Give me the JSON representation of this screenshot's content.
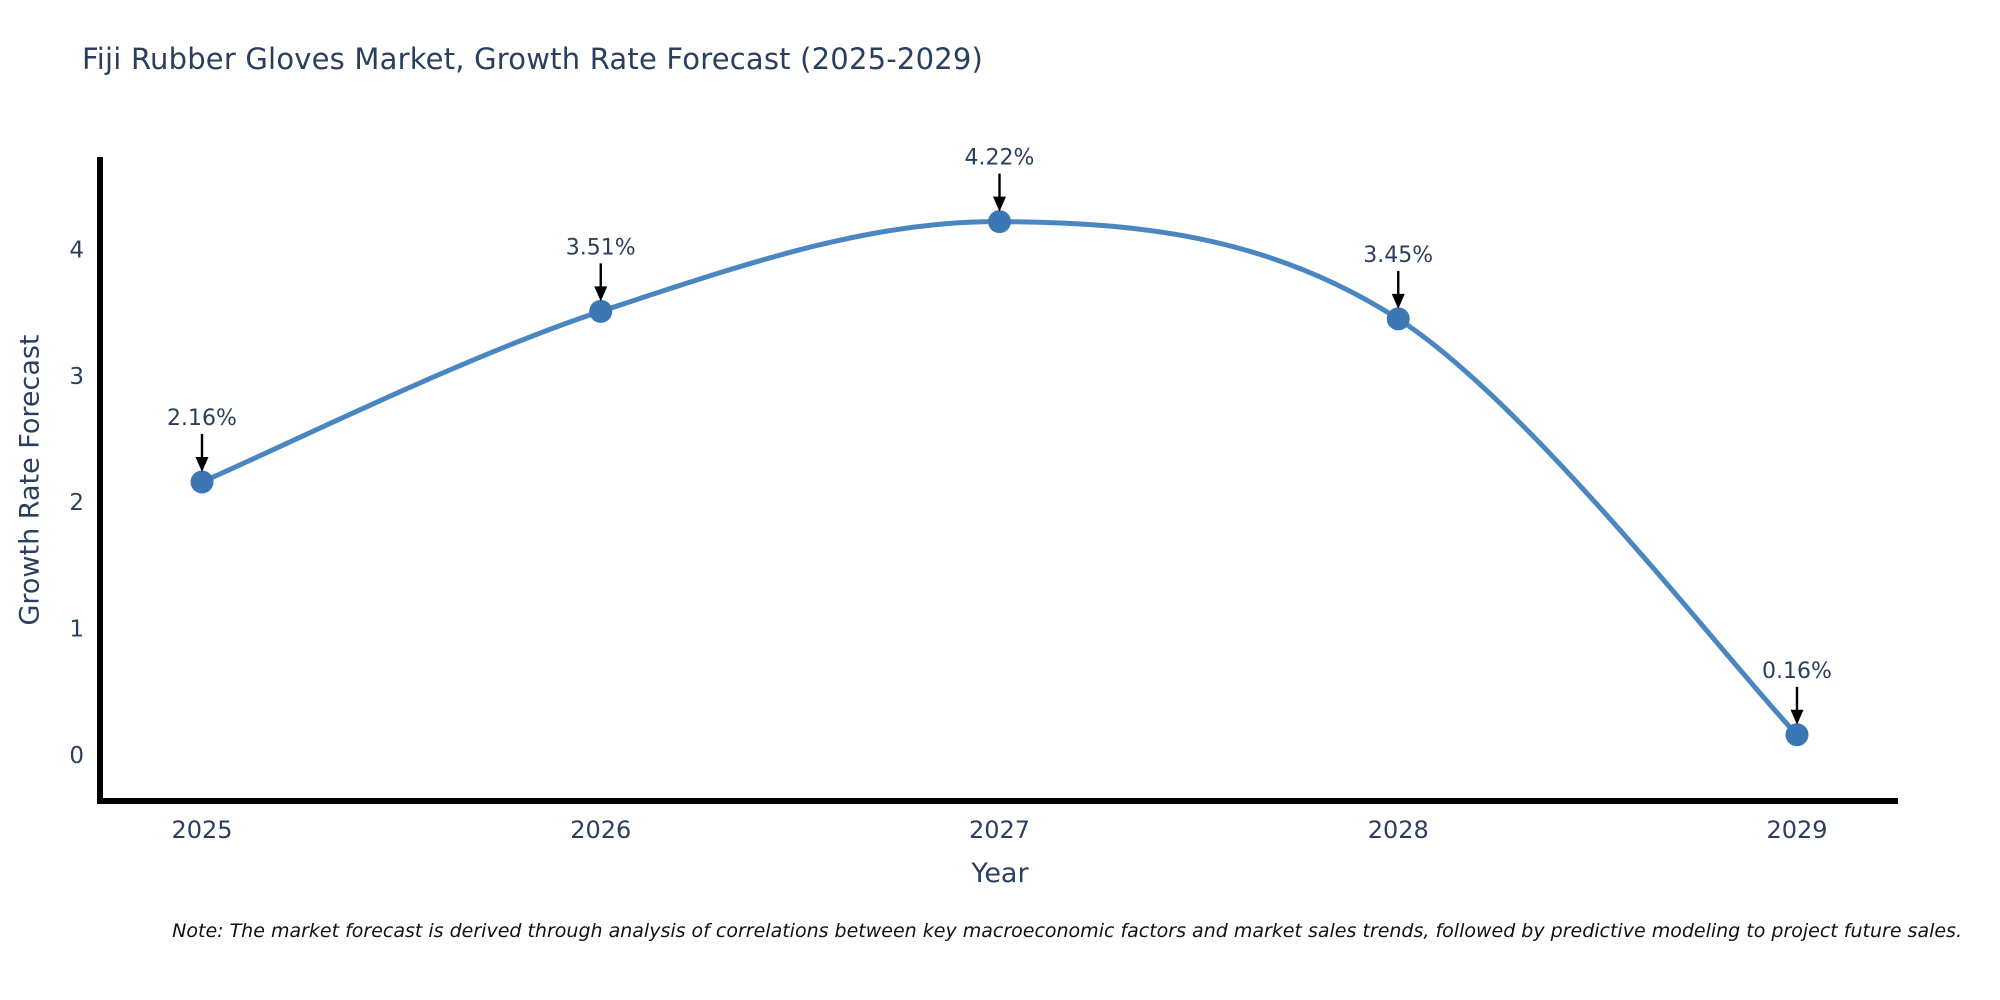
{
  "title": "Fiji Rubber Gloves Market, Growth Rate Forecast (2025-2029)",
  "note": "Note: The market forecast is derived through analysis of correlations between key macroeconomic factors and market sales trends, followed by predictive modeling to project future sales.",
  "colors": {
    "line": "#4a86c0",
    "marker": "#3b76b5",
    "spine": "#000000",
    "arrow": "#000000",
    "text": "#2a3f5f",
    "background": "#ffffff"
  },
  "chart_data": {
    "type": "line",
    "title": "Fiji Rubber Gloves Market, Growth Rate Forecast (2025-2029)",
    "xlabel": "Year",
    "ylabel": "Growth Rate Forecast",
    "x": [
      2025,
      2026,
      2027,
      2028,
      2029
    ],
    "categories": [
      "2025",
      "2026",
      "2027",
      "2028",
      "2029"
    ],
    "values": [
      2.16,
      3.51,
      4.22,
      3.45,
      0.16
    ],
    "point_labels": [
      "2.16%",
      "3.51%",
      "4.22%",
      "3.45%",
      "0.16%"
    ],
    "series": [
      {
        "name": "Growth Rate Forecast",
        "values": [
          2.16,
          3.51,
          4.22,
          3.45,
          0.16
        ]
      }
    ],
    "yticks": [
      0,
      1,
      2,
      3,
      4
    ],
    "yticklabels": [
      "0",
      "1",
      "2",
      "3",
      "4"
    ],
    "ylim": [
      -0.36,
      4.75
    ],
    "xlim": [
      2024.74,
      2029.25
    ],
    "grid": false,
    "legend_position": "none",
    "marker": "circle",
    "line_style": "smooth",
    "annotation_style": "value labels with black down-arrows above each point"
  }
}
